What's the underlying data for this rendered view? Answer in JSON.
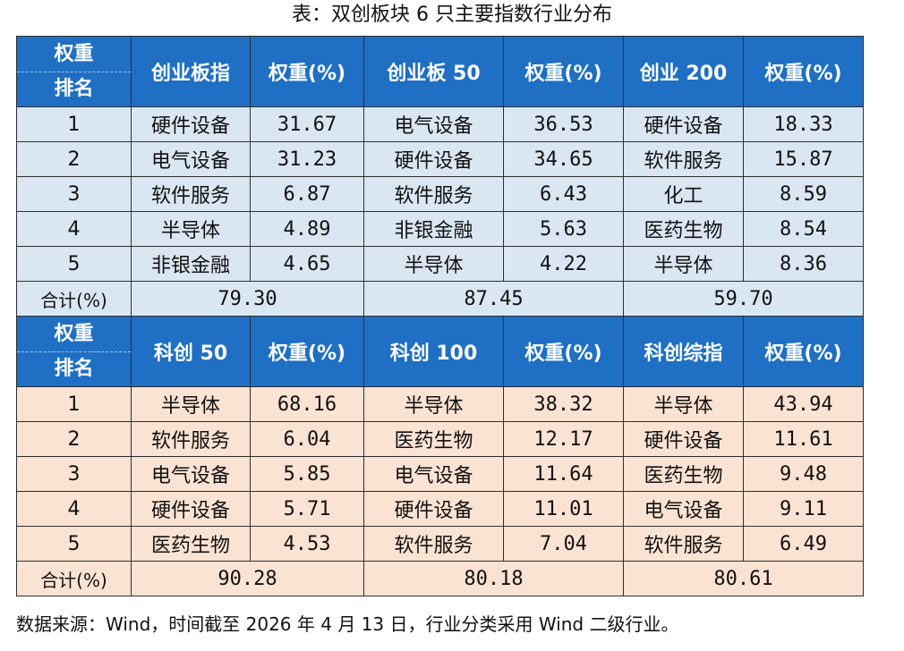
{
  "title": "表：双创板块 6 只主要指数行业分布",
  "rank_header_top": "权重",
  "rank_header_bottom": "排名",
  "weight_header": "权重(%)",
  "total_label": "合计(%)",
  "footnote": "数据来源：Wind，时间截至 2026 年 4 月 13 日，行业分类采用 Wind 二级行业。",
  "top_group": {
    "indices": [
      "创业板指",
      "创业板 50",
      "创业 200"
    ],
    "rows": [
      {
        "rank": "1",
        "cells": [
          [
            "硬件设备",
            "31.67"
          ],
          [
            "电气设备",
            "36.53"
          ],
          [
            "硬件设备",
            "18.33"
          ]
        ]
      },
      {
        "rank": "2",
        "cells": [
          [
            "电气设备",
            "31.23"
          ],
          [
            "硬件设备",
            "34.65"
          ],
          [
            "软件服务",
            "15.87"
          ]
        ]
      },
      {
        "rank": "3",
        "cells": [
          [
            "软件服务",
            "6.87"
          ],
          [
            "软件服务",
            "6.43"
          ],
          [
            "化工",
            "8.59"
          ]
        ]
      },
      {
        "rank": "4",
        "cells": [
          [
            "半导体",
            "4.89"
          ],
          [
            "非银金融",
            "5.63"
          ],
          [
            "医药生物",
            "8.54"
          ]
        ]
      },
      {
        "rank": "5",
        "cells": [
          [
            "非银金融",
            "4.65"
          ],
          [
            "半导体",
            "4.22"
          ],
          [
            "半导体",
            "8.36"
          ]
        ]
      }
    ],
    "totals": [
      "79.30",
      "87.45",
      "59.70"
    ]
  },
  "bottom_group": {
    "indices": [
      "科创 50",
      "科创 100",
      "科创综指"
    ],
    "rows": [
      {
        "rank": "1",
        "cells": [
          [
            "半导体",
            "68.16"
          ],
          [
            "半导体",
            "38.32"
          ],
          [
            "半导体",
            "43.94"
          ]
        ]
      },
      {
        "rank": "2",
        "cells": [
          [
            "软件服务",
            "6.04"
          ],
          [
            "医药生物",
            "12.17"
          ],
          [
            "硬件设备",
            "11.61"
          ]
        ]
      },
      {
        "rank": "3",
        "cells": [
          [
            "电气设备",
            "5.85"
          ],
          [
            "电气设备",
            "11.64"
          ],
          [
            "医药生物",
            "9.48"
          ]
        ]
      },
      {
        "rank": "4",
        "cells": [
          [
            "硬件设备",
            "5.71"
          ],
          [
            "硬件设备",
            "11.01"
          ],
          [
            "电气设备",
            "9.11"
          ]
        ]
      },
      {
        "rank": "5",
        "cells": [
          [
            "医药生物",
            "4.53"
          ],
          [
            "软件服务",
            "7.04"
          ],
          [
            "软件服务",
            "6.49"
          ]
        ]
      }
    ],
    "totals": [
      "90.28",
      "80.18",
      "80.61"
    ]
  }
}
